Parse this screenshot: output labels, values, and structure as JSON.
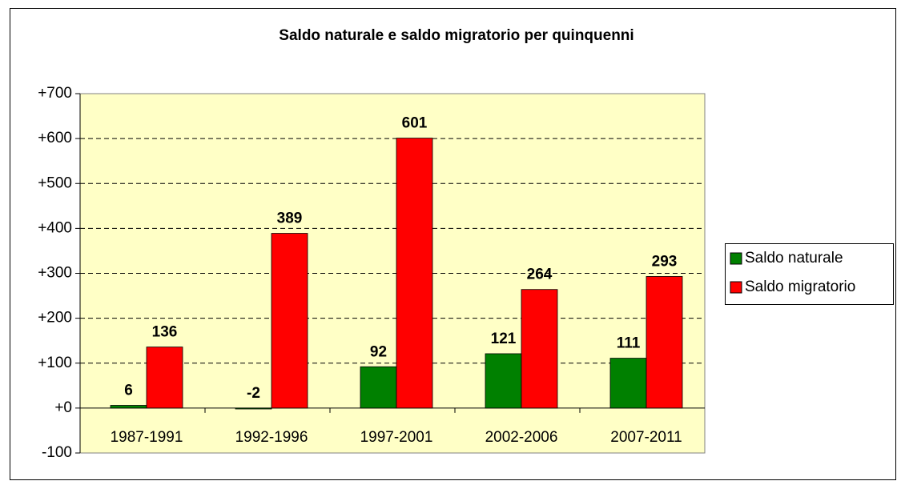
{
  "chart_data": {
    "type": "bar",
    "title": "Saldo naturale e saldo migratorio per quinquenni",
    "categories": [
      "1987-1991",
      "1992-1996",
      "1997-2001",
      "2002-2006",
      "2007-2011"
    ],
    "series": [
      {
        "name": "Saldo naturale",
        "color": "#008000",
        "label_color": "#1f5f1f",
        "values": [
          6,
          -2,
          92,
          121,
          111
        ]
      },
      {
        "name": "Saldo migratorio",
        "color": "#ff0000",
        "label_color": "#8b1a1a",
        "values": [
          136,
          389,
          601,
          264,
          293
        ]
      }
    ],
    "ylim": [
      -100,
      700
    ],
    "yticks": [
      -100,
      {
        "value": 0,
        "label": "+0"
      },
      {
        "value": 100,
        "label": "+100"
      },
      {
        "value": 200,
        "label": "+200"
      },
      {
        "value": 300,
        "label": "+300"
      },
      {
        "value": 400,
        "label": "+400"
      },
      {
        "value": 500,
        "label": "+500"
      },
      {
        "value": 600,
        "label": "+600"
      },
      {
        "value": 700,
        "label": "+700"
      }
    ],
    "grid": true,
    "legend": "right",
    "background": "#ffffc6"
  }
}
